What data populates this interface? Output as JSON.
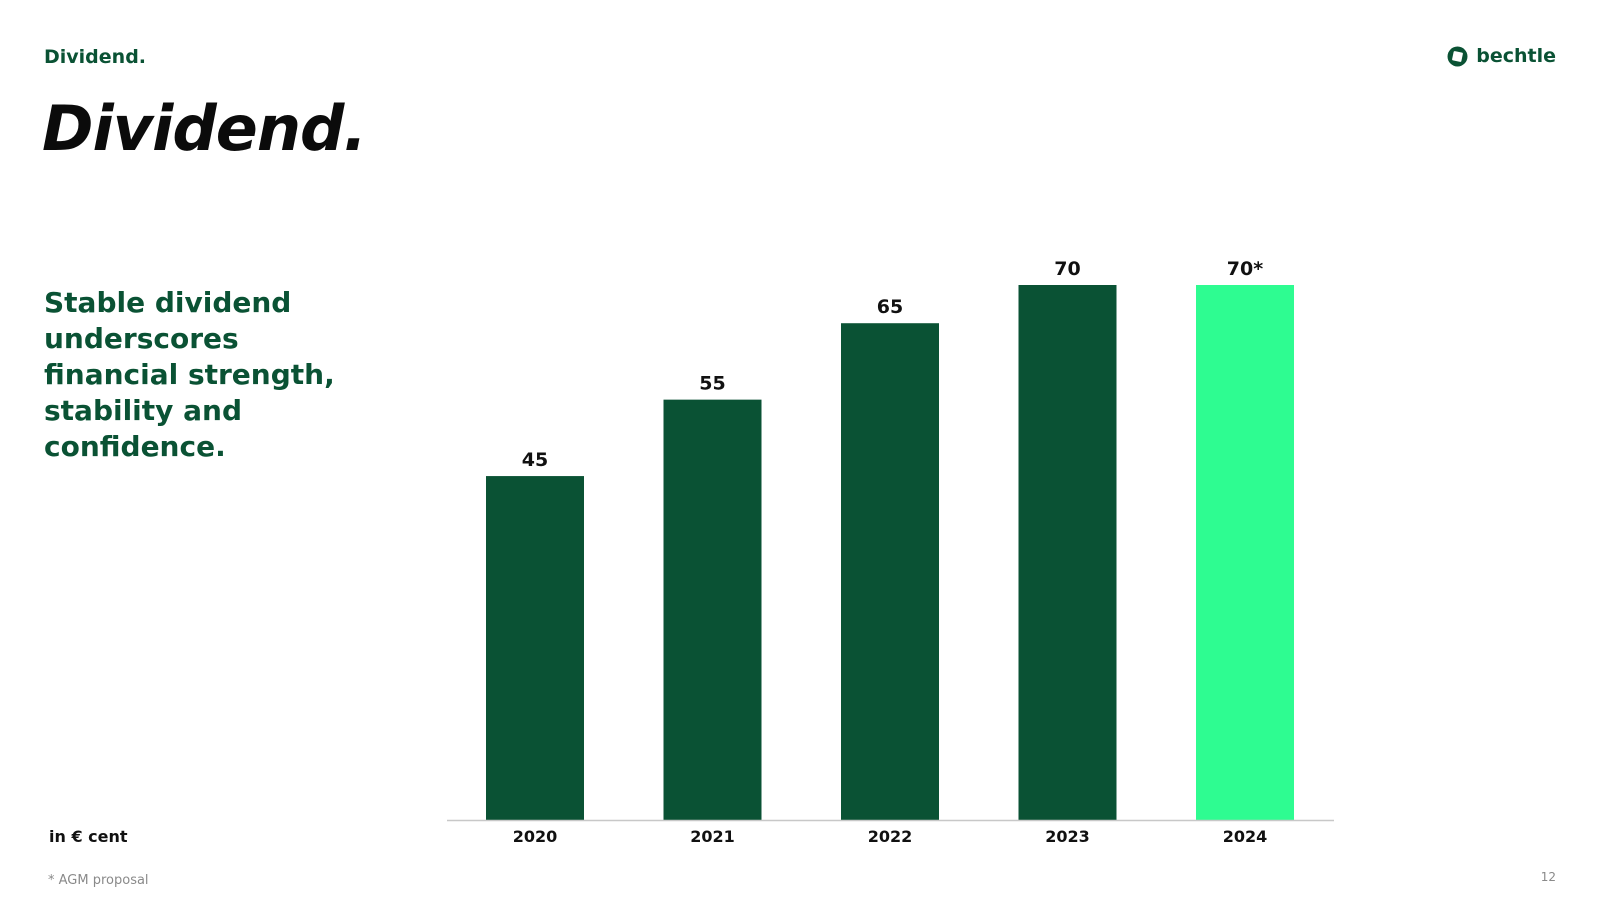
{
  "header": {
    "section_label": "Dividend.",
    "brand": "bechtle"
  },
  "title": "Dividend.",
  "tagline": "Stable dividend underscores financial strength, stability and confidence.",
  "unit_label": "in € cent",
  "footnote": "* AGM proposal",
  "page_number": "12",
  "colors": {
    "brand_dark_green": "#0a5234",
    "highlight_green": "#2efc91",
    "axis_line": "#c8c8c8"
  },
  "chart_data": {
    "type": "bar",
    "categories": [
      "2020",
      "2021",
      "2022",
      "2023",
      "2024"
    ],
    "values": [
      45,
      55,
      65,
      70,
      70
    ],
    "data_labels": [
      "45",
      "55",
      "65",
      "70",
      "70*"
    ],
    "bar_colors": [
      "#0a5234",
      "#0a5234",
      "#0a5234",
      "#0a5234",
      "#2efc91"
    ],
    "ylim": [
      0,
      70
    ],
    "grid": false,
    "legend": "none"
  }
}
